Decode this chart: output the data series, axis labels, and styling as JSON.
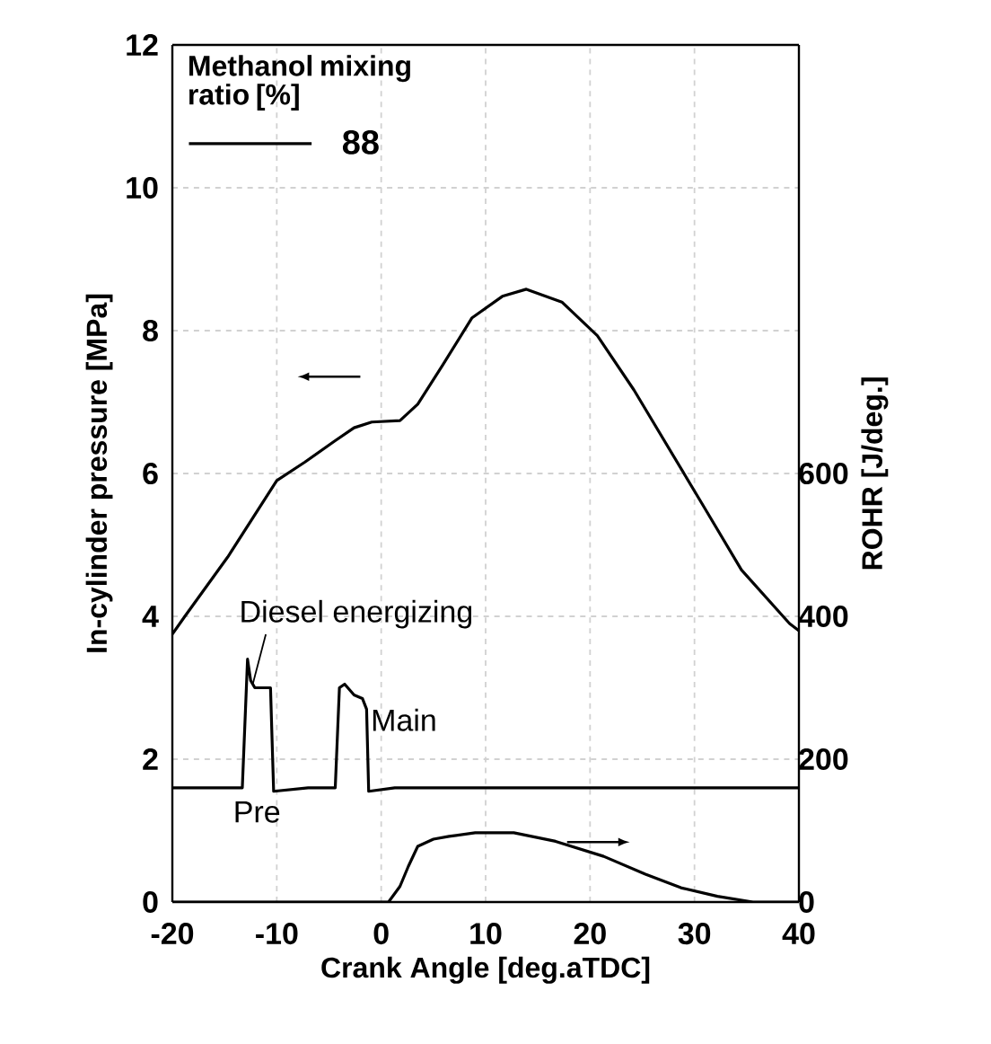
{
  "chart_data": {
    "type": "line",
    "xlabel": "Crank Angle [deg.aTDC]",
    "ylabel": "In-cylinder pressure [MPa]",
    "y2label": "ROHR [J/deg.]",
    "legend_title": "Methanol mixing ratio [%]",
    "legend": "top left",
    "grid": true,
    "line_style": "solid",
    "marker": "none",
    "xlim": [
      -20,
      40
    ],
    "xticks": [
      -20,
      -10,
      0,
      10,
      20,
      30,
      40
    ],
    "ylim": [
      0,
      12
    ],
    "yticks": [
      0,
      2,
      4,
      6,
      8,
      10,
      12
    ],
    "y2lim": [
      0,
      1200
    ],
    "y2ticks": [
      0,
      200,
      400,
      600
    ],
    "series": [
      {
        "name": "88",
        "color": "#000000",
        "axis": "y",
        "x": [
          -20,
          -18.8,
          -14.7,
          -10,
          -7.3,
          -4.5,
          -2.6,
          -0.9,
          1.8,
          3.5,
          5.9,
          8.7,
          11.6,
          13.9,
          17.3,
          20.7,
          24.2,
          27.6,
          31,
          34.5,
          39.1,
          40
        ],
        "values": [
          3.75,
          4.0,
          4.83,
          5.9,
          6.16,
          6.45,
          6.64,
          6.72,
          6.74,
          6.97,
          7.52,
          8.18,
          8.48,
          8.58,
          8.4,
          7.93,
          7.17,
          6.34,
          5.51,
          4.65,
          3.9,
          3.8
        ]
      },
      {
        "color": "#000000",
        "axis": "y",
        "x": [
          -20,
          -13.3,
          -12.8,
          -12.5,
          -12.1,
          -10.6,
          -10.3,
          -7,
          -4.4,
          -4.0,
          -3.5,
          -2.6,
          -1.8,
          -1.4,
          -1.2,
          1.3,
          40
        ],
        "values": [
          1.6,
          1.6,
          3.4,
          3.1,
          3.0,
          3.0,
          1.55,
          1.6,
          1.6,
          3.0,
          3.05,
          2.9,
          2.85,
          2.7,
          1.55,
          1.6,
          1.6
        ]
      },
      {
        "color": "#000000",
        "axis": "y2",
        "x": [
          -20,
          0.7,
          1.8,
          2.6,
          3.5,
          5,
          6.5,
          9,
          12.7,
          16.7,
          21.3,
          25.3,
          28.7,
          32.2,
          35.6,
          40
        ],
        "values": [
          0,
          0,
          22,
          50,
          78,
          88,
          92,
          97,
          97,
          85,
          64,
          39,
          20,
          8,
          0,
          0
        ]
      }
    ],
    "annotations": [
      {
        "text": "Diesel energizing",
        "x": -12.3,
        "y": 3.05
      },
      "Pre",
      {
        "text": "Main",
        "x": -1.5,
        "y": 2.8
      }
    ]
  }
}
